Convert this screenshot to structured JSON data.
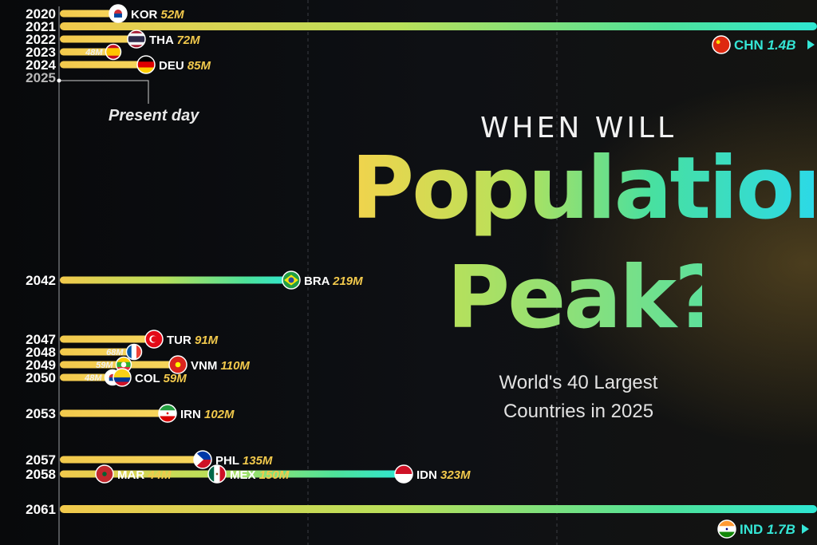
{
  "title": {
    "line1": "WHEN WILL",
    "line2": "Populations",
    "line3": "Peak?",
    "subtitle1": "World's 40 Largest",
    "subtitle2": "Countries in 2025"
  },
  "annotation": "Present day",
  "colors": {
    "bar_start": "#f2c94c",
    "bar_mid": "#8fe070",
    "bar_end": "#2ee6d2",
    "year_text": "#ffffff",
    "present_year_text": "#bbbbbb",
    "label_highlight": "#f2c94c"
  },
  "chart_data": {
    "type": "bar",
    "orientation": "horizontal",
    "x_axis": "peak year",
    "value_label": "peak population",
    "years": [
      "2020",
      "2021",
      "2022",
      "2023",
      "2024",
      "2025",
      "2042",
      "2047",
      "2048",
      "2049",
      "2050",
      "2053",
      "2057",
      "2058",
      "2061"
    ],
    "present_year": "2025",
    "countries": [
      {
        "code": "KOR",
        "peak_year": 2020,
        "peak_population": "52M",
        "value_millions": 52,
        "flag": "kr"
      },
      {
        "code": "CHN",
        "peak_year": 2021,
        "peak_population": "1.4B",
        "value_millions": 1400,
        "flag": "cn"
      },
      {
        "code": "THA",
        "peak_year": 2022,
        "peak_population": "72M",
        "value_millions": 72,
        "flag": "th"
      },
      {
        "code": "",
        "peak_year": 2023,
        "peak_population": "48M",
        "value_millions": 48,
        "flag": "es"
      },
      {
        "code": "DEU",
        "peak_year": 2024,
        "peak_population": "85M",
        "value_millions": 85,
        "flag": "de"
      },
      {
        "code": "BRA",
        "peak_year": 2042,
        "peak_population": "219M",
        "value_millions": 219,
        "flag": "br"
      },
      {
        "code": "TUR",
        "peak_year": 2047,
        "peak_population": "91M",
        "value_millions": 91,
        "flag": "tr"
      },
      {
        "code": "",
        "peak_year": 2048,
        "peak_population": "68M",
        "value_millions": 68,
        "flag": "fr"
      },
      {
        "code": "",
        "peak_year": 2049,
        "peak_population": "59M",
        "value_millions": 59,
        "flag": "mm"
      },
      {
        "code": "VNM",
        "peak_year": 2049,
        "peak_population": "110M",
        "value_millions": 110,
        "flag": "vn"
      },
      {
        "code": "",
        "peak_year": 2050,
        "peak_population": "48M",
        "value_millions": 48,
        "flag": "kr2"
      },
      {
        "code": "COL",
        "peak_year": 2050,
        "peak_population": "59M",
        "value_millions": 59,
        "flag": "co"
      },
      {
        "code": "IRN",
        "peak_year": 2053,
        "peak_population": "102M",
        "value_millions": 102,
        "flag": "ir"
      },
      {
        "code": "PHL",
        "peak_year": 2057,
        "peak_population": "135M",
        "value_millions": 135,
        "flag": "ph"
      },
      {
        "code": "MAR",
        "peak_year": 2058,
        "peak_population": "44M",
        "value_millions": 44,
        "flag": "ma"
      },
      {
        "code": "MEX",
        "peak_year": 2058,
        "peak_population": "150M",
        "value_millions": 150,
        "flag": "mx"
      },
      {
        "code": "IDN",
        "peak_year": 2058,
        "peak_population": "323M",
        "value_millions": 323,
        "flag": "id"
      },
      {
        "code": "IND",
        "peak_year": 2061,
        "peak_population": "1.7B",
        "value_millions": 1700,
        "flag": "in"
      }
    ]
  }
}
